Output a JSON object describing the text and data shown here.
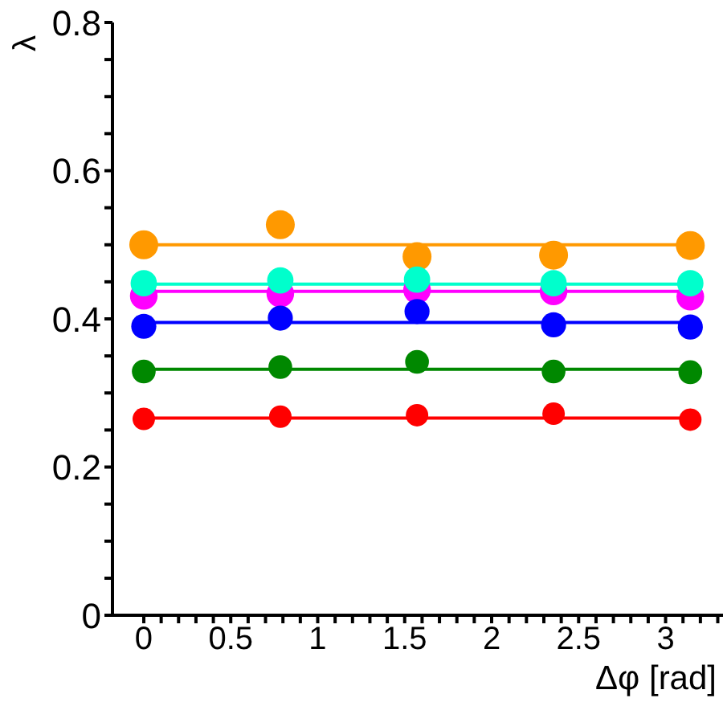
{
  "chart_data": {
    "type": "scatter",
    "xlabel": "Δφ [rad]",
    "ylabel": "λ",
    "marker": "circle",
    "xlim": [
      -0.18,
      3.33
    ],
    "ylim": [
      0,
      0.8
    ],
    "xticks": [
      0,
      {
        "value": 0.1,
        "label": null
      },
      {
        "value": 0.2,
        "label": null
      },
      {
        "value": 0.3,
        "label": null
      },
      {
        "value": 0.4,
        "label": null
      },
      0.5,
      {
        "value": 0.6,
        "label": null
      },
      {
        "value": 0.7,
        "label": null
      },
      {
        "value": 0.8,
        "label": null
      },
      {
        "value": 0.9,
        "label": null
      },
      1,
      {
        "value": 1.1,
        "label": null
      },
      {
        "value": 1.2,
        "label": null
      },
      {
        "value": 1.3,
        "label": null
      },
      {
        "value": 1.4,
        "label": null
      },
      1.5,
      {
        "value": 1.6,
        "label": null
      },
      {
        "value": 1.7,
        "label": null
      },
      {
        "value": 1.8,
        "label": null
      },
      {
        "value": 1.9,
        "label": null
      },
      2,
      {
        "value": 2.1,
        "label": null
      },
      {
        "value": 2.2,
        "label": null
      },
      {
        "value": 2.3,
        "label": null
      },
      {
        "value": 2.4,
        "label": null
      },
      2.5,
      {
        "value": 2.6,
        "label": null
      },
      {
        "value": 2.7,
        "label": null
      },
      {
        "value": 2.8,
        "label": null
      },
      {
        "value": 2.9,
        "label": null
      },
      3,
      {
        "value": 3.1,
        "label": null
      },
      {
        "value": 3.2,
        "label": null
      },
      {
        "value": 3.3,
        "label": null
      }
    ],
    "yticks": [
      0,
      {
        "value": 0.05,
        "label": null
      },
      {
        "value": 0.1,
        "label": null
      },
      {
        "value": 0.15,
        "label": null
      },
      0.2,
      {
        "value": 0.25,
        "label": null
      },
      {
        "value": 0.3,
        "label": null
      },
      {
        "value": 0.35,
        "label": null
      },
      0.4,
      {
        "value": 0.45,
        "label": null
      },
      {
        "value": 0.5,
        "label": null
      },
      {
        "value": 0.55,
        "label": null
      },
      0.6,
      {
        "value": 0.65,
        "label": null
      },
      {
        "value": 0.7,
        "label": null
      },
      {
        "value": 0.75,
        "label": null
      },
      0.8
    ],
    "series": [
      {
        "type": "line",
        "marker": "none",
        "color": "#ff9900",
        "x": [
          0,
          3.14
        ],
        "values": [
          0.5,
          0.5
        ]
      },
      {
        "type": "line",
        "marker": "none",
        "color": "#00ffcc",
        "x": [
          0,
          3.14
        ],
        "values": [
          0.447,
          0.447
        ]
      },
      {
        "type": "line",
        "marker": "none",
        "color": "#ff00ff",
        "x": [
          0.03,
          3.11
        ],
        "values": [
          0.437,
          0.437
        ]
      },
      {
        "type": "line",
        "marker": "none",
        "color": "#0000ff",
        "x": [
          0,
          3.14
        ],
        "values": [
          0.395,
          0.395
        ]
      },
      {
        "type": "line",
        "marker": "none",
        "color": "#008800",
        "x": [
          0,
          3.14
        ],
        "values": [
          0.332,
          0.332
        ]
      },
      {
        "type": "line",
        "marker": "none",
        "color": "#ff0000",
        "x": [
          0,
          3.14
        ],
        "values": [
          0.266,
          0.266
        ]
      },
      {
        "color": "#ff9900",
        "x": [
          0,
          0.785,
          1.571,
          2.356,
          3.142
        ],
        "values": [
          0.5,
          0.527,
          0.484,
          0.486,
          0.499
        ]
      },
      {
        "color": "#ff00ff",
        "x": [
          0,
          0.785,
          1.571,
          2.356,
          3.142
        ],
        "values": [
          0.431,
          0.434,
          0.439,
          0.437,
          0.43
        ]
      },
      {
        "color": "#00ffcc",
        "x": [
          0,
          0.785,
          1.571,
          2.356,
          3.142
        ],
        "values": [
          0.448,
          0.452,
          0.453,
          0.448,
          0.448
        ]
      },
      {
        "color": "#0000ff",
        "x": [
          0,
          0.785,
          1.571,
          2.356,
          3.142
        ],
        "values": [
          0.39,
          0.401,
          0.41,
          0.392,
          0.389
        ]
      },
      {
        "color": "#008800",
        "x": [
          0,
          0.785,
          1.571,
          2.356,
          3.142
        ],
        "values": [
          0.329,
          0.335,
          0.342,
          0.329,
          0.328
        ]
      },
      {
        "color": "#ff0000",
        "x": [
          0,
          0.785,
          1.571,
          2.356,
          3.142
        ],
        "values": [
          0.265,
          0.268,
          0.27,
          0.272,
          0.264
        ]
      }
    ]
  }
}
